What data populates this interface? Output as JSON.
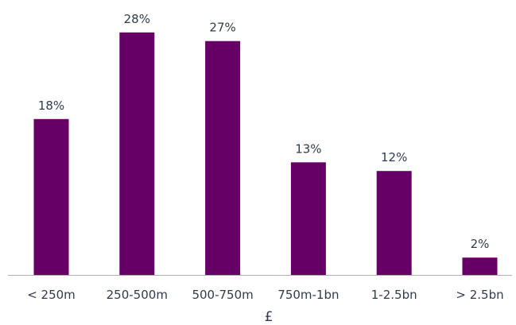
{
  "chart_data": {
    "type": "bar",
    "categories": [
      "< 250m",
      "250-500m",
      "500-750m",
      "750m-1bn",
      "1-2.5bn",
      "> 2.5bn"
    ],
    "values": [
      18,
      28,
      27,
      13,
      12,
      2
    ],
    "value_labels": [
      "18%",
      "28%",
      "27%",
      "13%",
      "12%",
      "2%"
    ],
    "unit": "%",
    "title": "",
    "xlabel": "£",
    "ylabel": "",
    "ylim": [
      0,
      30
    ],
    "grid": false,
    "legend": "none",
    "colors": {
      "bar": "#660066",
      "axis": "#b0b0b0",
      "text": "#2f3b4c"
    }
  }
}
